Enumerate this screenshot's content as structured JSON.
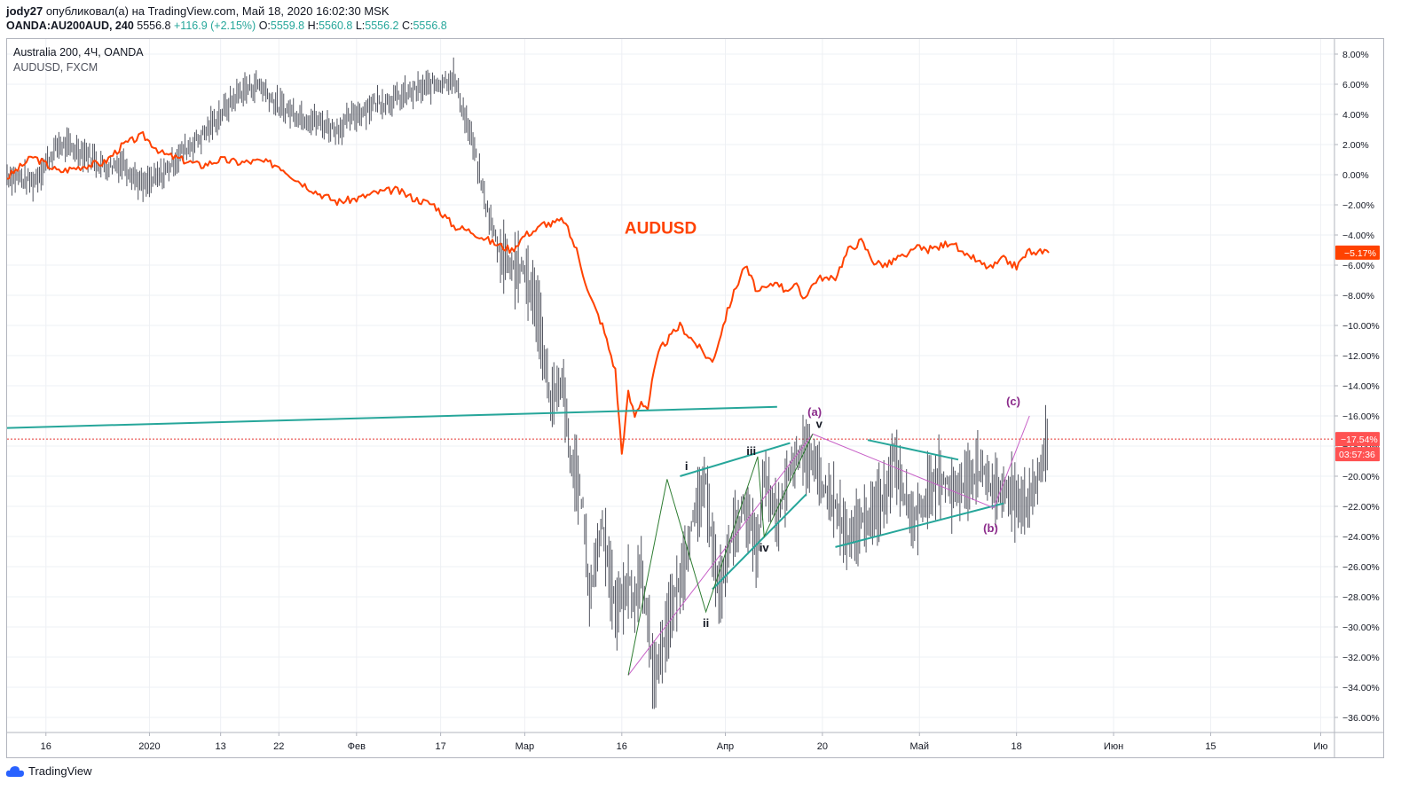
{
  "header": {
    "username": "jody27",
    "published_text": "опубликовал(а) на TradingView.com, Май 18, 2020 16:02:30 MSK"
  },
  "quote": {
    "symbol": "OANDA:AU200AUD, 240",
    "price": "5556.8",
    "change": "+116.9 (+2.15%)",
    "o_label": "O:",
    "o_value": "5559.8",
    "h_label": "H:",
    "h_value": "5560.8",
    "l_label": "L:",
    "l_value": "5556.2",
    "c_label": "C:",
    "c_value": "5556.8"
  },
  "legend": {
    "main": "Australia 200, 4Ч, OANDA",
    "compare": "AUDUSD, FXCM"
  },
  "footer": {
    "brand": "TradingView"
  },
  "colors": {
    "audusd": "#ff4200",
    "trendline": "#26a69a",
    "wave": "#8b2b8b",
    "wave_line": "#c760c7",
    "candle": "#50535e",
    "price_line": "#e53935",
    "grid": "#eef0f4"
  },
  "chart_data": {
    "type": "line",
    "title": "Australia 200, 4Ч, OANDA",
    "ylabel": "",
    "ylim": [
      -37,
      9
    ],
    "y_ticks": [
      8,
      6,
      4,
      2,
      0,
      -2,
      -4,
      -6,
      -8,
      -10,
      -12,
      -14,
      -16,
      -18,
      -20,
      -22,
      -24,
      -26,
      -28,
      -30,
      -32,
      -34,
      -36
    ],
    "y_tick_labels": [
      "8.00%",
      "6.00%",
      "4.00%",
      "2.00%",
      "0.00%",
      "−2.00%",
      "−4.00%",
      "−6.00%",
      "−8.00%",
      "−10.00%",
      "−12.00%",
      "−14.00%",
      "−16.00%",
      "−18.00%",
      "−20.00%",
      "−22.00%",
      "−24.00%",
      "−26.00%",
      "−28.00%",
      "−30.00%",
      "−32.00%",
      "−34.00%",
      "−36.00%"
    ],
    "x_tick_labels": [
      "16",
      "2020",
      "13",
      "22",
      "Фев",
      "17",
      "Мар",
      "16",
      "Апр",
      "20",
      "Май",
      "18",
      "Июн",
      "15",
      "Ию"
    ],
    "x_ticks_day": [
      0,
      16,
      27,
      36,
      48,
      61,
      74,
      89,
      105,
      120,
      135,
      150,
      165,
      180,
      197
    ],
    "x_range_days": [
      -6,
      199
    ],
    "series": [
      {
        "name": "AUDUSD",
        "style": "line",
        "x_day": [
          -6,
          -2,
          2,
          6,
          9,
          12,
          15,
          18,
          21,
          24,
          27,
          30,
          33,
          36,
          39,
          42,
          45,
          48,
          51,
          54,
          57,
          60,
          63,
          66,
          69,
          72,
          74,
          76,
          77,
          78,
          80,
          82,
          84,
          86,
          88,
          89,
          90,
          91,
          92,
          93,
          94,
          95,
          96,
          98,
          100,
          102,
          103,
          104,
          105,
          106,
          108,
          110,
          112,
          113,
          114,
          116,
          117,
          118,
          119,
          120,
          121,
          122,
          124,
          126,
          128,
          130,
          132,
          133,
          134,
          136,
          138,
          140,
          142,
          143,
          144,
          146,
          148,
          150,
          152,
          153,
          154,
          155
        ],
        "y": [
          -0.2,
          1.2,
          0.2,
          0.6,
          0.8,
          2.0,
          2.6,
          1.4,
          1.0,
          0.6,
          1.0,
          0.8,
          0.9,
          0.6,
          -0.4,
          -1.2,
          -1.8,
          -1.6,
          -1.2,
          -1.0,
          -1.6,
          -2.0,
          -3.4,
          -3.8,
          -4.5,
          -5.0,
          -4.0,
          -3.6,
          -3.2,
          -3.3,
          -3.0,
          -5.0,
          -8.0,
          -10.0,
          -13.0,
          -18.5,
          -14.5,
          -16.0,
          -15.0,
          -15.5,
          -13.0,
          -11.5,
          -11.0,
          -10.0,
          -11.0,
          -12.0,
          -12.4,
          -11.0,
          -9.5,
          -8.2,
          -6.0,
          -7.8,
          -7.4,
          -7.0,
          -7.6,
          -7.4,
          -8.2,
          -7.6,
          -7.0,
          -6.8,
          -7.0,
          -6.8,
          -5.0,
          -4.4,
          -5.8,
          -6.0,
          -5.4,
          -5.6,
          -4.8,
          -5.0,
          -4.8,
          -4.4,
          -5.5,
          -5.4,
          -5.8,
          -6.2,
          -5.6,
          -6.1,
          -5.0,
          -5.4,
          -5.0,
          -5.17
        ]
      },
      {
        "name": "Australia 200",
        "style": "candles",
        "x_day": [
          -6,
          -2,
          2,
          6,
          9,
          12,
          15,
          18,
          21,
          24,
          27,
          30,
          33,
          36,
          39,
          42,
          45,
          48,
          51,
          54,
          57,
          60,
          63,
          64,
          66,
          68,
          70,
          72,
          74,
          76,
          78,
          80,
          81,
          82,
          83,
          84,
          86,
          88,
          90,
          91,
          92,
          94,
          96,
          98,
          100,
          102,
          104,
          106,
          108,
          110,
          111,
          113,
          115,
          117,
          118,
          119,
          120,
          122,
          124,
          126,
          128,
          130,
          131,
          132,
          134,
          136,
          138,
          140,
          142,
          144,
          146,
          148,
          150,
          152,
          153,
          154,
          155
        ],
        "y": [
          0.0,
          -0.5,
          2.0,
          1.5,
          0.5,
          0.8,
          -0.8,
          0.0,
          1.5,
          2.5,
          4.0,
          5.5,
          6.0,
          4.5,
          4.0,
          3.5,
          3.0,
          4.0,
          4.8,
          5.0,
          5.5,
          6.0,
          6.5,
          5.0,
          2.0,
          -2.0,
          -5.0,
          -6.0,
          -6.5,
          -9.0,
          -15.0,
          -14.0,
          -19.0,
          -20.0,
          -22.0,
          -28.0,
          -23.0,
          -29.0,
          -27.0,
          -28.5,
          -26.0,
          -33.5,
          -30.0,
          -27.0,
          -23.0,
          -20.5,
          -28.0,
          -24.0,
          -22.0,
          -25.0,
          -20.0,
          -23.0,
          -19.5,
          -18.0,
          -19.0,
          -19.5,
          -20.5,
          -22.0,
          -24.5,
          -23.0,
          -22.5,
          -21.0,
          -18.5,
          -20.0,
          -23.0,
          -21.5,
          -20.0,
          -21.0,
          -20.5,
          -19.5,
          -20.5,
          -21.0,
          -21.5,
          -21.8,
          -20.5,
          -19.0,
          -17.54
        ]
      }
    ],
    "last_values": [
      {
        "name": "Australia 200",
        "label": "−17.54%",
        "timer": "03:57:36",
        "color": "#ff5252"
      },
      {
        "name": "AUDUSD",
        "label": "−5.17%",
        "color": "#ff4200"
      }
    ],
    "annotations": [
      {
        "text": "AUDUSD",
        "day": 95,
        "y": -3.9,
        "color": "#ff4200",
        "size": 19,
        "bold": true
      },
      {
        "text": "i",
        "day": 99,
        "y": -19.6,
        "color": "#131722",
        "size": 13,
        "bold": true
      },
      {
        "text": "ii",
        "day": 102,
        "y": -30.0,
        "color": "#131722",
        "size": 13,
        "bold": true
      },
      {
        "text": "iii",
        "day": 109,
        "y": -18.6,
        "color": "#131722",
        "size": 13,
        "bold": true
      },
      {
        "text": "iv",
        "day": 111,
        "y": -25.0,
        "color": "#131722",
        "size": 13,
        "bold": true
      },
      {
        "text": "v",
        "day": 119.5,
        "y": -16.8,
        "color": "#131722",
        "size": 13,
        "bold": true
      },
      {
        "text": "(a)",
        "day": 118.8,
        "y": -16.0,
        "color": "#8b2b8b",
        "size": 13,
        "bold": true
      },
      {
        "text": "(b)",
        "day": 146,
        "y": -23.7,
        "color": "#8b2b8b",
        "size": 13,
        "bold": true
      },
      {
        "text": "(c)",
        "day": 149.5,
        "y": -15.3,
        "color": "#8b2b8b",
        "size": 13,
        "bold": true
      }
    ],
    "lines": [
      {
        "kind": "trend",
        "from": [
          -6,
          -16.8
        ],
        "to": [
          113,
          -15.4
        ]
      },
      {
        "kind": "trend",
        "from": [
          98,
          -20.0
        ],
        "to": [
          115,
          -17.8
        ]
      },
      {
        "kind": "trend",
        "from": [
          103,
          -27.5
        ],
        "to": [
          117.5,
          -21.2
        ]
      },
      {
        "kind": "trend",
        "from": [
          122,
          -24.7
        ],
        "to": [
          148,
          -21.8
        ]
      },
      {
        "kind": "trend",
        "from": [
          127,
          -17.6
        ],
        "to": [
          141,
          -18.9
        ]
      },
      {
        "kind": "wave",
        "from": [
          90,
          -33.2
        ],
        "to": [
          118.5,
          -17.2
        ]
      },
      {
        "kind": "wave",
        "from": [
          118.5,
          -17.2
        ],
        "to": [
          146.5,
          -22.1
        ]
      },
      {
        "kind": "wave",
        "from": [
          146.5,
          -22.1
        ],
        "to": [
          152,
          -16.0
        ]
      },
      {
        "kind": "impulse",
        "points": [
          [
            90,
            -33.2
          ],
          [
            96,
            -20.2
          ],
          [
            102,
            -29.0
          ],
          [
            110,
            -18.7
          ],
          [
            111,
            -24.0
          ],
          [
            118.5,
            -17.2
          ]
        ]
      }
    ],
    "current_price_level": -17.54,
    "grid": true,
    "legend_position": "top-left"
  }
}
